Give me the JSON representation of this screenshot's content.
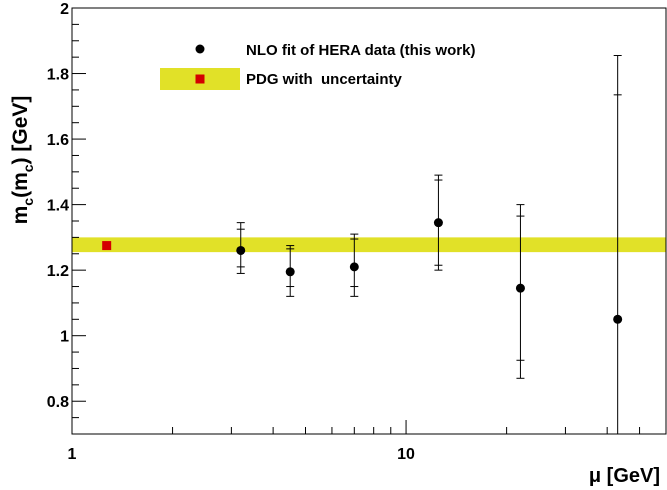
{
  "chart_data": {
    "type": "scatter",
    "xlabel": "μ [GeV]",
    "ylabel_main": "m",
    "ylabel_sub1": "c",
    "ylabel_mid": "(m",
    "ylabel_sub2": "c",
    "ylabel_end": ") [GeV]",
    "xscale": "log",
    "xlim": [
      1,
      60
    ],
    "ylim": [
      0.7,
      2.0
    ],
    "x_tick_labels": [
      {
        "value": 1,
        "label": "1"
      },
      {
        "value": 10,
        "label": "10"
      }
    ],
    "y_tick_labels": [
      {
        "value": 0.8,
        "label": "0.8"
      },
      {
        "value": 1.0,
        "label": "1"
      },
      {
        "value": 1.2,
        "label": "1.2"
      },
      {
        "value": 1.4,
        "label": "1.4"
      },
      {
        "value": 1.6,
        "label": "1.6"
      },
      {
        "value": 1.8,
        "label": "1.8"
      },
      {
        "value": 2.0,
        "label": "2"
      }
    ],
    "grid": false,
    "legend_position": "top",
    "series": [
      {
        "name": "NLO fit of HERA data (this work)",
        "marker": "circle",
        "color": "#000000",
        "points": [
          {
            "x": 3.2,
            "y": 1.26,
            "y_err_low": 1.19,
            "y_err_high": 1.345,
            "y_inner_low": 1.21,
            "y_inner_high": 1.325
          },
          {
            "x": 4.5,
            "y": 1.195,
            "y_err_low": 1.12,
            "y_err_high": 1.275,
            "y_inner_low": 1.15,
            "y_inner_high": 1.265
          },
          {
            "x": 7.0,
            "y": 1.21,
            "y_err_low": 1.12,
            "y_err_high": 1.31,
            "y_inner_low": 1.15,
            "y_inner_high": 1.295
          },
          {
            "x": 12.5,
            "y": 1.345,
            "y_err_low": 1.2,
            "y_err_high": 1.49,
            "y_inner_low": 1.215,
            "y_inner_high": 1.475
          },
          {
            "x": 22.0,
            "y": 1.145,
            "y_err_low": 0.87,
            "y_err_high": 1.4,
            "y_inner_low": 0.925,
            "y_inner_high": 1.365
          },
          {
            "x": 43.0,
            "y": 1.05,
            "y_err_low": 0.7,
            "y_err_high": 1.855,
            "y_inner_low": 0.7,
            "y_inner_high": 1.735
          }
        ]
      },
      {
        "name": "PDG with  uncertainty",
        "marker": "square",
        "color": "#d40000",
        "band_color": "#e1e128",
        "points": [
          {
            "x": 1.27,
            "y": 1.275
          }
        ],
        "band_low": 1.255,
        "band_high": 1.3
      }
    ]
  }
}
